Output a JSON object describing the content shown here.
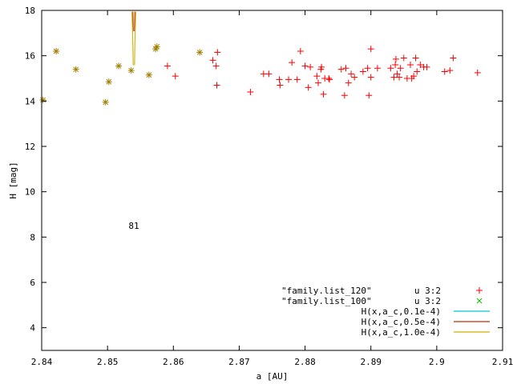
{
  "chart_data": {
    "type": "scatter",
    "xlabel": "a [AU]",
    "ylabel": "H [mag]",
    "xlim": [
      2.84,
      2.91
    ],
    "ylim": [
      3,
      18
    ],
    "xticks": [
      "2.84",
      "2.85",
      "2.86",
      "2.87",
      "2.88",
      "2.89",
      "2.9",
      "2.91"
    ],
    "yticks": [
      "4",
      "6",
      "8",
      "10",
      "12",
      "14",
      "16",
      "18"
    ],
    "grid": false,
    "legend_position": "bottom-right",
    "annotation": {
      "text": "81",
      "x": 2.854,
      "y": 8.5
    },
    "series": [
      {
        "name": "u 3:2",
        "file": "\"family.list_120\"",
        "kind": "points",
        "marker": "plus",
        "color": "#ff0000",
        "points": [
          [
            2.8591,
            15.55
          ],
          [
            2.8603,
            15.1
          ],
          [
            2.866,
            15.8
          ],
          [
            2.8665,
            15.55
          ],
          [
            2.8667,
            16.15
          ],
          [
            2.8666,
            14.7
          ],
          [
            2.8717,
            14.4
          ],
          [
            2.8737,
            15.2
          ],
          [
            2.8745,
            15.2
          ],
          [
            2.8761,
            14.95
          ],
          [
            2.8762,
            14.7
          ],
          [
            2.8775,
            14.95
          ],
          [
            2.878,
            15.7
          ],
          [
            2.8788,
            14.95
          ],
          [
            2.8793,
            16.2
          ],
          [
            2.88,
            15.55
          ],
          [
            2.8805,
            14.6
          ],
          [
            2.8808,
            15.5
          ],
          [
            2.8818,
            15.1
          ],
          [
            2.882,
            14.8
          ],
          [
            2.8824,
            15.4
          ],
          [
            2.8825,
            15.5
          ],
          [
            2.8828,
            14.3
          ],
          [
            2.883,
            15.0
          ],
          [
            2.8836,
            15.0
          ],
          [
            2.8837,
            14.95
          ],
          [
            2.8855,
            15.4
          ],
          [
            2.886,
            14.25
          ],
          [
            2.8862,
            15.45
          ],
          [
            2.8866,
            14.8
          ],
          [
            2.887,
            15.2
          ],
          [
            2.8875,
            15.05
          ],
          [
            2.8888,
            15.3
          ],
          [
            2.8895,
            15.45
          ],
          [
            2.8897,
            14.25
          ],
          [
            2.89,
            15.05
          ],
          [
            2.89,
            16.3
          ],
          [
            2.891,
            15.45
          ],
          [
            2.893,
            15.45
          ],
          [
            2.8935,
            15.05
          ],
          [
            2.8937,
            15.6
          ],
          [
            2.8938,
            15.85
          ],
          [
            2.894,
            15.2
          ],
          [
            2.8943,
            15.05
          ],
          [
            2.8945,
            15.45
          ],
          [
            2.895,
            15.9
          ],
          [
            2.8955,
            15.0
          ],
          [
            2.896,
            15.6
          ],
          [
            2.8962,
            15.0
          ],
          [
            2.8965,
            15.1
          ],
          [
            2.8968,
            15.9
          ],
          [
            2.897,
            15.3
          ],
          [
            2.8975,
            15.6
          ],
          [
            2.898,
            15.5
          ],
          [
            2.8985,
            15.5
          ],
          [
            2.9012,
            15.3
          ],
          [
            2.902,
            15.35
          ],
          [
            2.9025,
            15.9
          ],
          [
            2.9062,
            15.25
          ]
        ]
      },
      {
        "name": "u 3:2",
        "file": "\"family.list_100\"",
        "kind": "points",
        "marker": "x",
        "color": "#00c000",
        "overlap_color": "#a08000",
        "points": [
          [
            2.8402,
            14.05
          ],
          [
            2.8422,
            16.2
          ],
          [
            2.8452,
            15.4
          ],
          [
            2.8497,
            13.95
          ],
          [
            2.8502,
            14.85
          ],
          [
            2.8517,
            15.55
          ],
          [
            2.8536,
            15.35
          ],
          [
            2.8563,
            15.15
          ],
          [
            2.8573,
            16.3
          ],
          [
            2.8575,
            16.4
          ],
          [
            2.864,
            16.15
          ]
        ]
      },
      {
        "name": "H(x,a_c,0.1e-4)",
        "kind": "curve",
        "color": "#00c8d8",
        "k": 1e-05
      },
      {
        "name": "H(x,a_c,0.5e-4)",
        "kind": "curve",
        "color": "#b83000",
        "k": 5e-05
      },
      {
        "name": "H(x,a_c,1.0e-4)",
        "kind": "curve",
        "color": "#d0b000",
        "k": 0.0001
      }
    ]
  }
}
